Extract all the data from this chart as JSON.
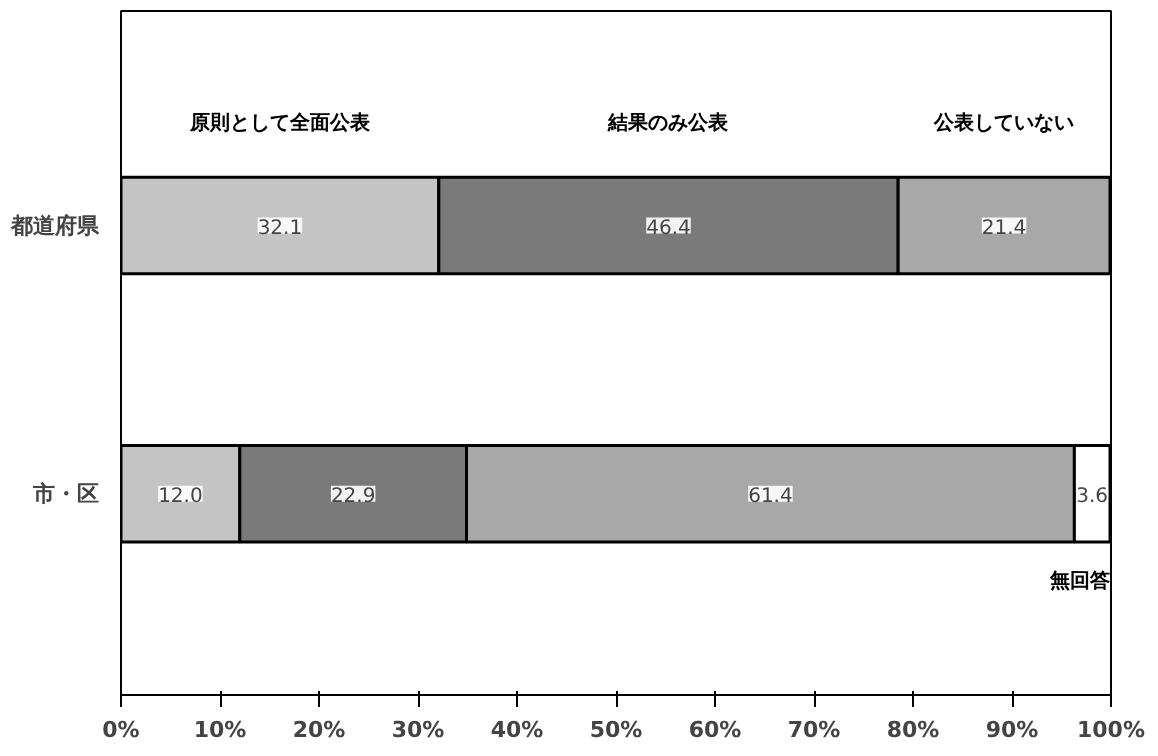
{
  "chart_data": {
    "type": "bar",
    "orientation": "horizontal",
    "stacked": true,
    "data_labels": true,
    "grid": false,
    "categories": [
      "都道府県",
      "市・区"
    ],
    "xlim": [
      0,
      100
    ],
    "xticks": [
      {
        "value": 0,
        "label": "0%"
      },
      {
        "value": 10,
        "label": "10%"
      },
      {
        "value": 20,
        "label": "20%"
      },
      {
        "value": 30,
        "label": "30%"
      },
      {
        "value": 40,
        "label": "40%"
      },
      {
        "value": 50,
        "label": "50%"
      },
      {
        "value": 60,
        "label": "60%"
      },
      {
        "value": 70,
        "label": "70%"
      },
      {
        "value": 80,
        "label": "80%"
      },
      {
        "value": 90,
        "label": "90%"
      },
      {
        "value": 100,
        "label": "100%"
      }
    ],
    "series": [
      {
        "name": "原則として全面公表",
        "color": "#c4c4c4",
        "values": [
          32.1,
          12.0
        ],
        "value_labels": [
          "32.1",
          "12.0"
        ]
      },
      {
        "name": "結果のみ公表",
        "color": "#7a7a7a",
        "values": [
          46.4,
          22.9
        ]
      },
      {
        "name": "公表していない",
        "color": "#a8a8a8",
        "values": [
          21.4,
          61.4
        ]
      },
      {
        "name": "無回答",
        "color": "#ffffff",
        "values": [
          null,
          3.6
        ]
      }
    ]
  }
}
